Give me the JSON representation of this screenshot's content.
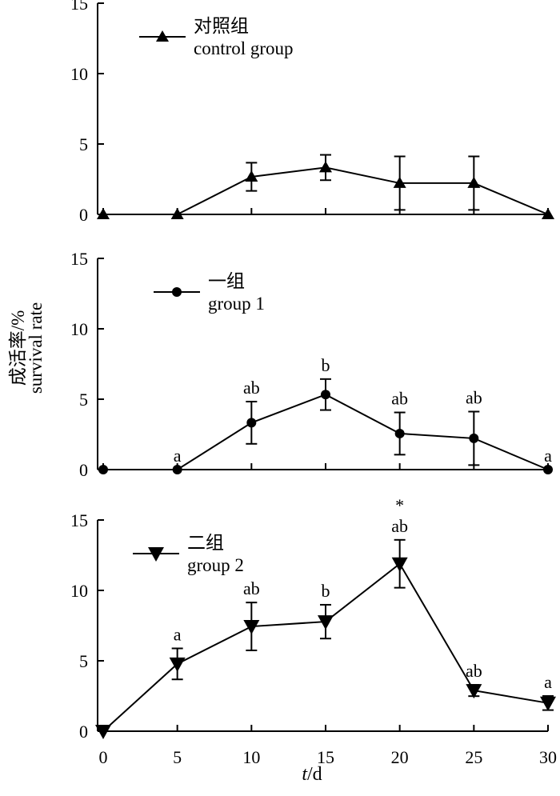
{
  "chart_data": {
    "type": "line",
    "ylabel_zh": "成活率/%",
    "ylabel_en": "survival rate",
    "xlabel_italic": "t",
    "xlabel_unit": "/d",
    "x_ticks": [
      0,
      5,
      10,
      15,
      20,
      25,
      30
    ],
    "xlim": [
      0,
      30
    ],
    "grid": false,
    "panels": [
      {
        "legend_zh": "对照组",
        "legend_en": "control group",
        "marker": "triangle-up",
        "ylim": [
          0,
          15
        ],
        "y_ticks": [
          0,
          5,
          10,
          15
        ],
        "x": [
          0,
          5,
          10,
          15,
          20,
          25,
          30
        ],
        "y": [
          0,
          0,
          2.67,
          3.33,
          2.22,
          2.22,
          0
        ],
        "err": [
          0,
          0,
          1.0,
          0.9,
          1.9,
          1.9,
          0
        ],
        "labels": [
          "",
          "",
          "",
          "",
          "",
          "",
          ""
        ]
      },
      {
        "legend_zh": "一组",
        "legend_en": "group 1",
        "marker": "circle",
        "ylim": [
          0,
          15
        ],
        "y_ticks": [
          0,
          5,
          10,
          15
        ],
        "x": [
          0,
          5,
          10,
          15,
          20,
          25,
          30
        ],
        "y": [
          0,
          0,
          3.33,
          5.33,
          2.56,
          2.22,
          0
        ],
        "err": [
          0,
          0,
          1.5,
          1.1,
          1.5,
          1.9,
          0
        ],
        "labels": [
          "",
          "a",
          "ab",
          "b",
          "ab",
          "ab",
          "a"
        ]
      },
      {
        "legend_zh": "二组",
        "legend_en": "group 2",
        "marker": "triangle-down",
        "ylim": [
          0,
          15
        ],
        "y_ticks": [
          0,
          5,
          10,
          15
        ],
        "x": [
          0,
          5,
          10,
          15,
          20,
          25,
          30
        ],
        "y": [
          0,
          4.78,
          7.44,
          7.78,
          11.89,
          2.89,
          2.0
        ],
        "err": [
          0,
          1.1,
          1.7,
          1.2,
          1.7,
          0.4,
          0.5
        ],
        "labels": [
          "",
          "a",
          "ab",
          "b",
          "ab",
          "ab",
          "a"
        ],
        "star_index": 4,
        "star": "*"
      }
    ]
  }
}
